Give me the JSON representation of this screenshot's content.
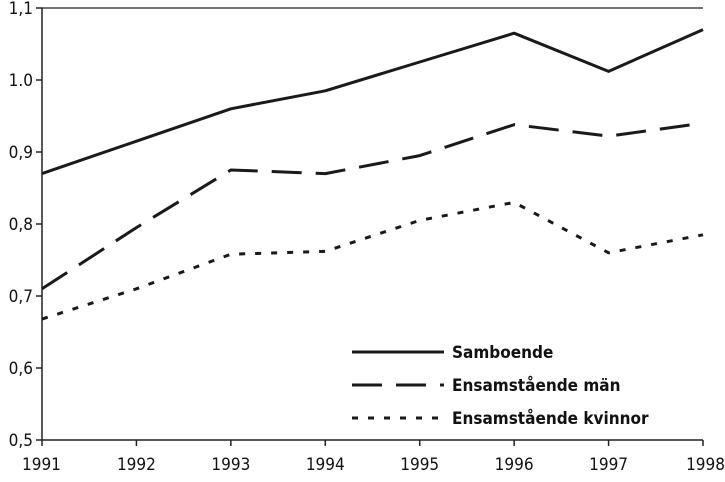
{
  "chart_data": {
    "type": "line",
    "x": [
      1991,
      1992,
      1993,
      1994,
      1995,
      1996,
      1997,
      1998
    ],
    "x_tick_labels": [
      "1991",
      "1992",
      "1993",
      "1994",
      "1995",
      "1996",
      "1997",
      "1998"
    ],
    "y_tick_labels": [
      "0,5",
      "0,6",
      "0,7",
      "0,8",
      "0,9",
      "1.0",
      "1,1"
    ],
    "y_ticks": [
      0.5,
      0.6,
      0.7,
      0.8,
      0.9,
      1.0,
      1.1
    ],
    "xlim": [
      1991,
      1998
    ],
    "ylim": [
      0.5,
      1.1
    ],
    "grid": false,
    "legend_position": "bottom-right",
    "series": [
      {
        "name": "Samboende",
        "style": "solid",
        "values": [
          0.87,
          0.915,
          0.96,
          0.985,
          1.025,
          1.065,
          1.012,
          1.07
        ]
      },
      {
        "name": "Ensamstående män",
        "style": "dashed",
        "values": [
          0.71,
          0.795,
          0.875,
          0.87,
          0.895,
          0.938,
          0.922,
          0.94
        ]
      },
      {
        "name": "Ensamstående kvinnor",
        "style": "dotted",
        "values": [
          0.668,
          0.71,
          0.758,
          0.762,
          0.805,
          0.83,
          0.76,
          0.785
        ]
      }
    ],
    "colors": {
      "line": "#1a1a1a",
      "axis": "#222222"
    }
  }
}
